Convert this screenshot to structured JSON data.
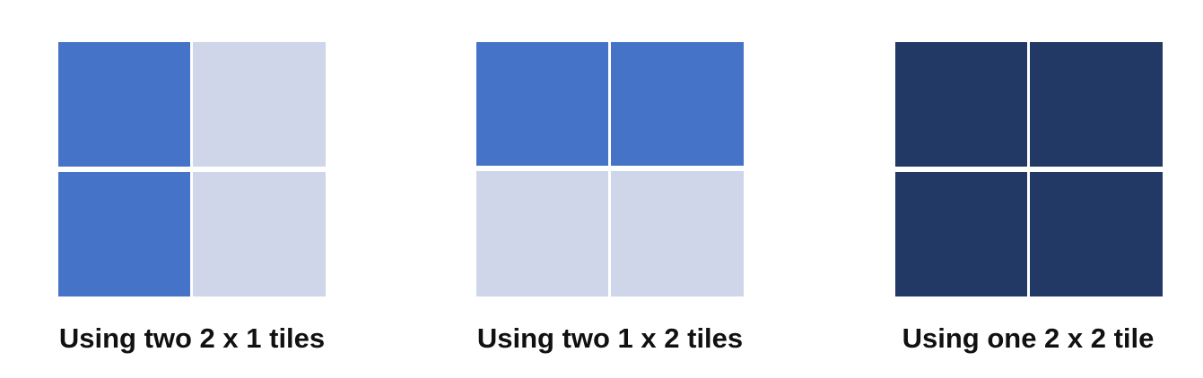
{
  "colors": {
    "blue": "#4573c8",
    "light": "#d0d6ea",
    "dark": "#213964",
    "gap": "#ffffff"
  },
  "panels": [
    {
      "caption": "Using two 2 x 1 tiles",
      "cells": [
        "blue",
        "light",
        "blue",
        "light"
      ]
    },
    {
      "caption": "Using two 1 x 2 tiles",
      "cells": [
        "blue",
        "blue",
        "light",
        "light"
      ]
    },
    {
      "caption": "Using one 2 x 2 tile",
      "cells": [
        "dark",
        "dark",
        "dark",
        "dark"
      ]
    }
  ]
}
